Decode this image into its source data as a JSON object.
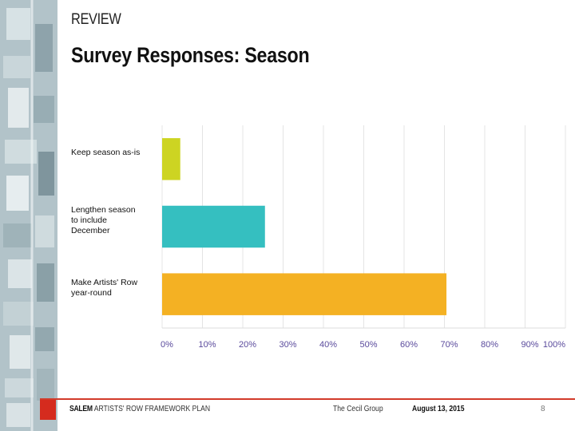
{
  "slide": {
    "section": "REVIEW",
    "title": "Survey Responses: Season"
  },
  "footer": {
    "brand": "SALEM",
    "plan_name": "ARTISTS' ROW FRAMEWORK PLAN",
    "firm": "The Cecil Group",
    "date": "August 13, 2015",
    "page_number": "8"
  },
  "colors": {
    "accent_red": "#d52b1e"
  },
  "chart_data": {
    "type": "bar",
    "orientation": "horizontal",
    "title": "",
    "categories": [
      "Keep season as-is",
      "Lengthen season\nto include\nDecember",
      "Make Artists' Row\nyear-round"
    ],
    "values": [
      4.5,
      25.5,
      70.5
    ],
    "colors": [
      "#cdd422",
      "#35bfc0",
      "#f4b123"
    ],
    "xlim": [
      0,
      100
    ],
    "xticks": [
      "0%",
      "10%",
      "20%",
      "30%",
      "40%",
      "50%",
      "60%",
      "70%",
      "80%",
      "90%",
      "100%"
    ],
    "grid": true,
    "legend": "none"
  }
}
